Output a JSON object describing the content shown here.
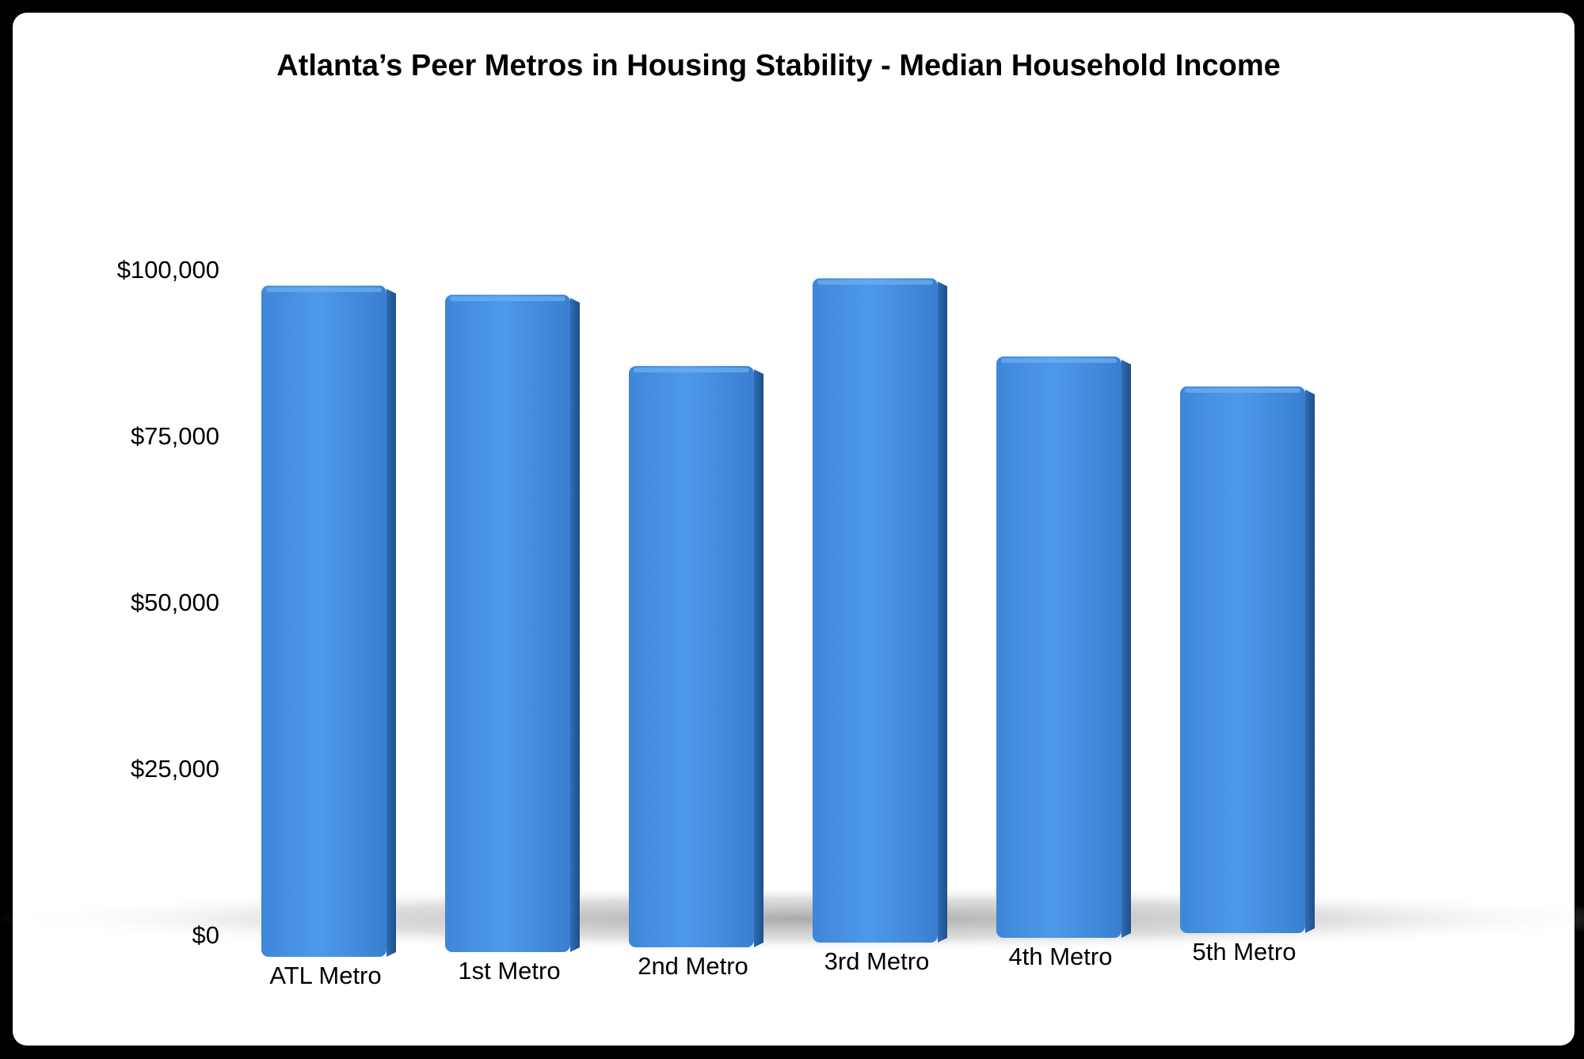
{
  "chart_data": {
    "type": "bar",
    "title": "Atlanta’s Peer Metros in Housing Stability - Median Household Income",
    "categories": [
      "ATL Metro",
      "1st Metro",
      "2nd Metro",
      "3rd Metro",
      "4th Metro",
      "5th Metro"
    ],
    "values": [
      97000,
      95000,
      84000,
      96000,
      84000,
      79000
    ],
    "ylim": [
      0,
      100000
    ],
    "yticks": [
      0,
      25000,
      50000,
      75000,
      100000
    ],
    "ytick_labels": [
      "$0",
      "$25,000",
      "$50,000",
      "$75,000",
      "$100,000"
    ],
    "xlabel": "",
    "ylabel": "",
    "grid": false,
    "legend": "none",
    "bar_color": "#4a93e6"
  }
}
